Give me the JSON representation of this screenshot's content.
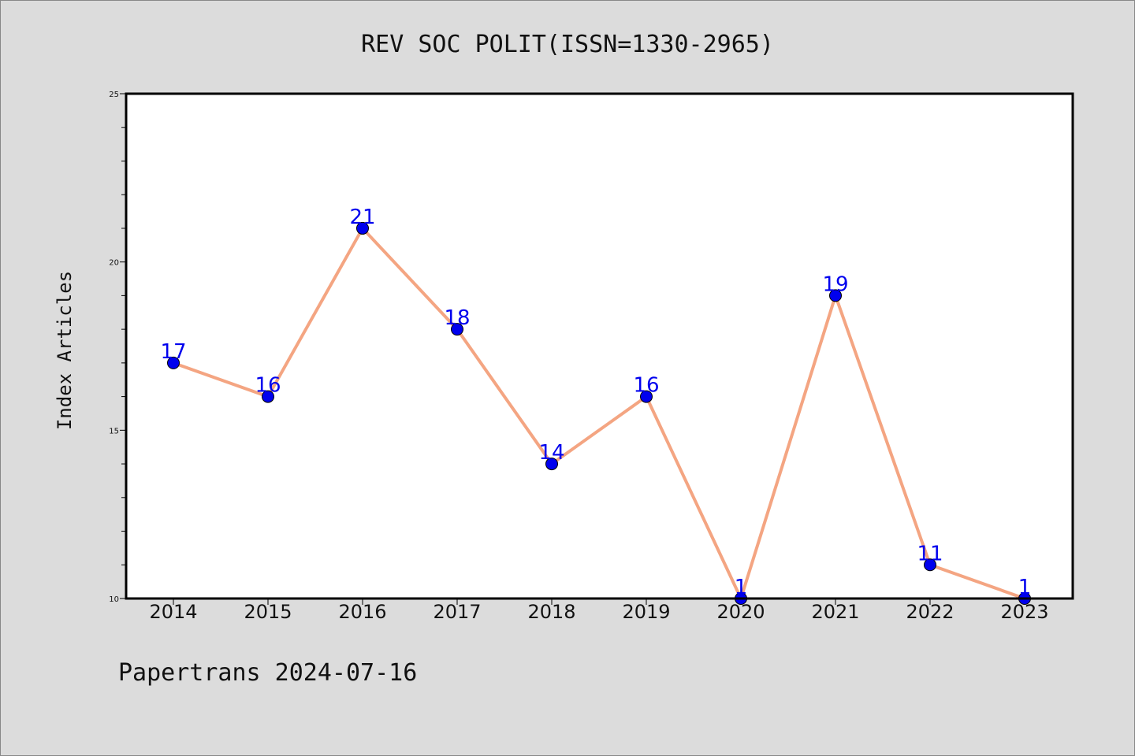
{
  "chart_data": {
    "type": "line",
    "title": "REV SOC POLIT(ISSN=1330-2965)",
    "ylabel": "Index Articles",
    "xlabel": "",
    "categories": [
      "2014",
      "2015",
      "2016",
      "2017",
      "2018",
      "2019",
      "2020",
      "2021",
      "2022",
      "2023"
    ],
    "values": [
      17,
      16,
      21,
      18,
      14,
      16,
      1,
      19,
      11,
      1
    ],
    "data_labels": [
      "17",
      "16",
      "21",
      "18",
      "14",
      "16",
      "1",
      "19",
      "11",
      "1"
    ],
    "ylim": [
      10,
      25
    ],
    "yticks_major": [
      "10",
      "15",
      "20",
      "25"
    ],
    "grid": false,
    "line_color": "#f4a582",
    "marker_color": "#0000ee",
    "label_color": "#0000ee",
    "background_color": "#dcdcdc",
    "plot_background": "#ffffff"
  },
  "footer": "Papertrans 2024-07-16"
}
